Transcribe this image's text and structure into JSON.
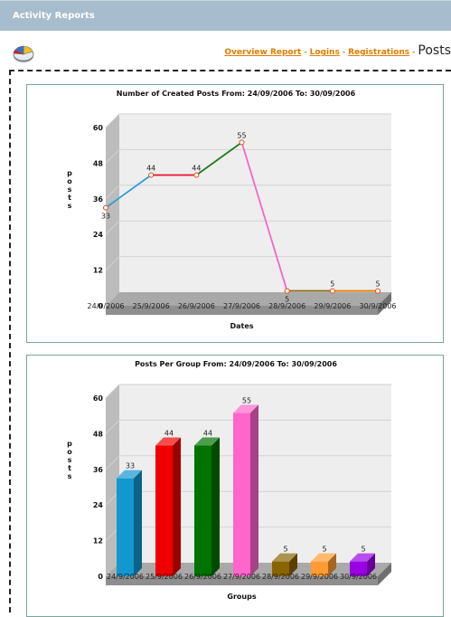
{
  "window": {
    "title": "Activity Reports"
  },
  "nav": {
    "links": [
      "Overview Report",
      "Logins",
      "Registrations"
    ],
    "current": "Posts"
  },
  "charts": [
    {
      "title": "Number of Created Posts From: 24/09/2006 To: 30/09/2006",
      "ylabel": "posts",
      "xlabel": "Dates"
    },
    {
      "title": "Posts Per Group From: 24/09/2006 To: 30/09/2006",
      "ylabel": "posts",
      "xlabel": "Groups"
    }
  ],
  "chart_data": [
    {
      "type": "line",
      "title": "Number of Created Posts From: 24/09/2006 To: 30/09/2006",
      "xlabel": "Dates",
      "ylabel": "posts",
      "categories": [
        "24/9/2006",
        "25/9/2006",
        "26/9/2006",
        "27/9/2006",
        "28/9/2006",
        "29/9/2006",
        "30/9/2006"
      ],
      "values": [
        33,
        44,
        44,
        55,
        5,
        5,
        5
      ],
      "ylim": [
        0,
        60
      ],
      "yticks": [
        0,
        12,
        24,
        36,
        48,
        60
      ],
      "segment_colors": [
        "#2b9fd6",
        "#e8152b",
        "#1f7a1f",
        "#f267c8",
        "#8a6a10",
        "#e07c00"
      ],
      "grid": true
    },
    {
      "type": "bar",
      "title": "Posts Per Group From: 24/09/2006 To: 30/09/2006",
      "xlabel": "Groups",
      "ylabel": "posts",
      "categories": [
        "24/9/2006",
        "25/9/2006",
        "26/9/2006",
        "27/9/2006",
        "28/9/2006",
        "29/9/2006",
        "30/9/2006"
      ],
      "values": [
        33,
        44,
        44,
        55,
        5,
        5,
        5
      ],
      "ylim": [
        0,
        60
      ],
      "yticks": [
        0,
        12,
        24,
        36,
        48,
        60
      ],
      "colors": [
        "#1397cf",
        "#f00000",
        "#007300",
        "#ff66cc",
        "#8a6400",
        "#ff9c33",
        "#9a00e6"
      ],
      "grid": true
    }
  ]
}
